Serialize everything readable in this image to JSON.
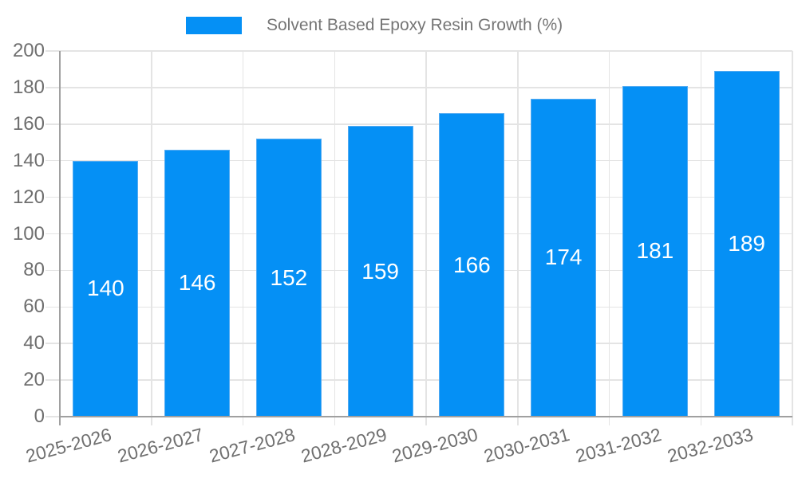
{
  "legend": {
    "label": "Solvent Based Epoxy Resin Growth (%)"
  },
  "colors": {
    "bar_fill": "#0590F5",
    "bar_border": "#56ACF2",
    "axis_line": "#A0A0A0",
    "gridline": "#E4E4E4",
    "tick_label_text": "#6F6F6F",
    "legend_text": "#757575",
    "value_label_text": "#FFFFFF",
    "background": "#FFFFFF"
  },
  "chart_data": {
    "type": "bar",
    "title": "",
    "series_name": "Solvent Based Epoxy Resin Growth (%)",
    "categories": [
      "2025-2026",
      "2026-2027",
      "2027-2028",
      "2028-2029",
      "2029-2030",
      "2030-2031",
      "2031-2032",
      "2032-2033"
    ],
    "values": [
      140,
      146,
      152,
      159,
      166,
      174,
      181,
      189
    ],
    "value_labels": [
      "140",
      "146",
      "152",
      "159",
      "166",
      "174",
      "181",
      "189"
    ],
    "ytick_labels": [
      "0",
      "20",
      "40",
      "60",
      "80",
      "100",
      "120",
      "140",
      "160",
      "180",
      "200"
    ],
    "ylim": [
      0,
      200
    ],
    "ytick_step": 20,
    "grid": true,
    "legend_position": "top-center",
    "value_label_position": "inside-middle",
    "x_label_rotation_deg": -15,
    "xlabel": "",
    "ylabel": ""
  }
}
